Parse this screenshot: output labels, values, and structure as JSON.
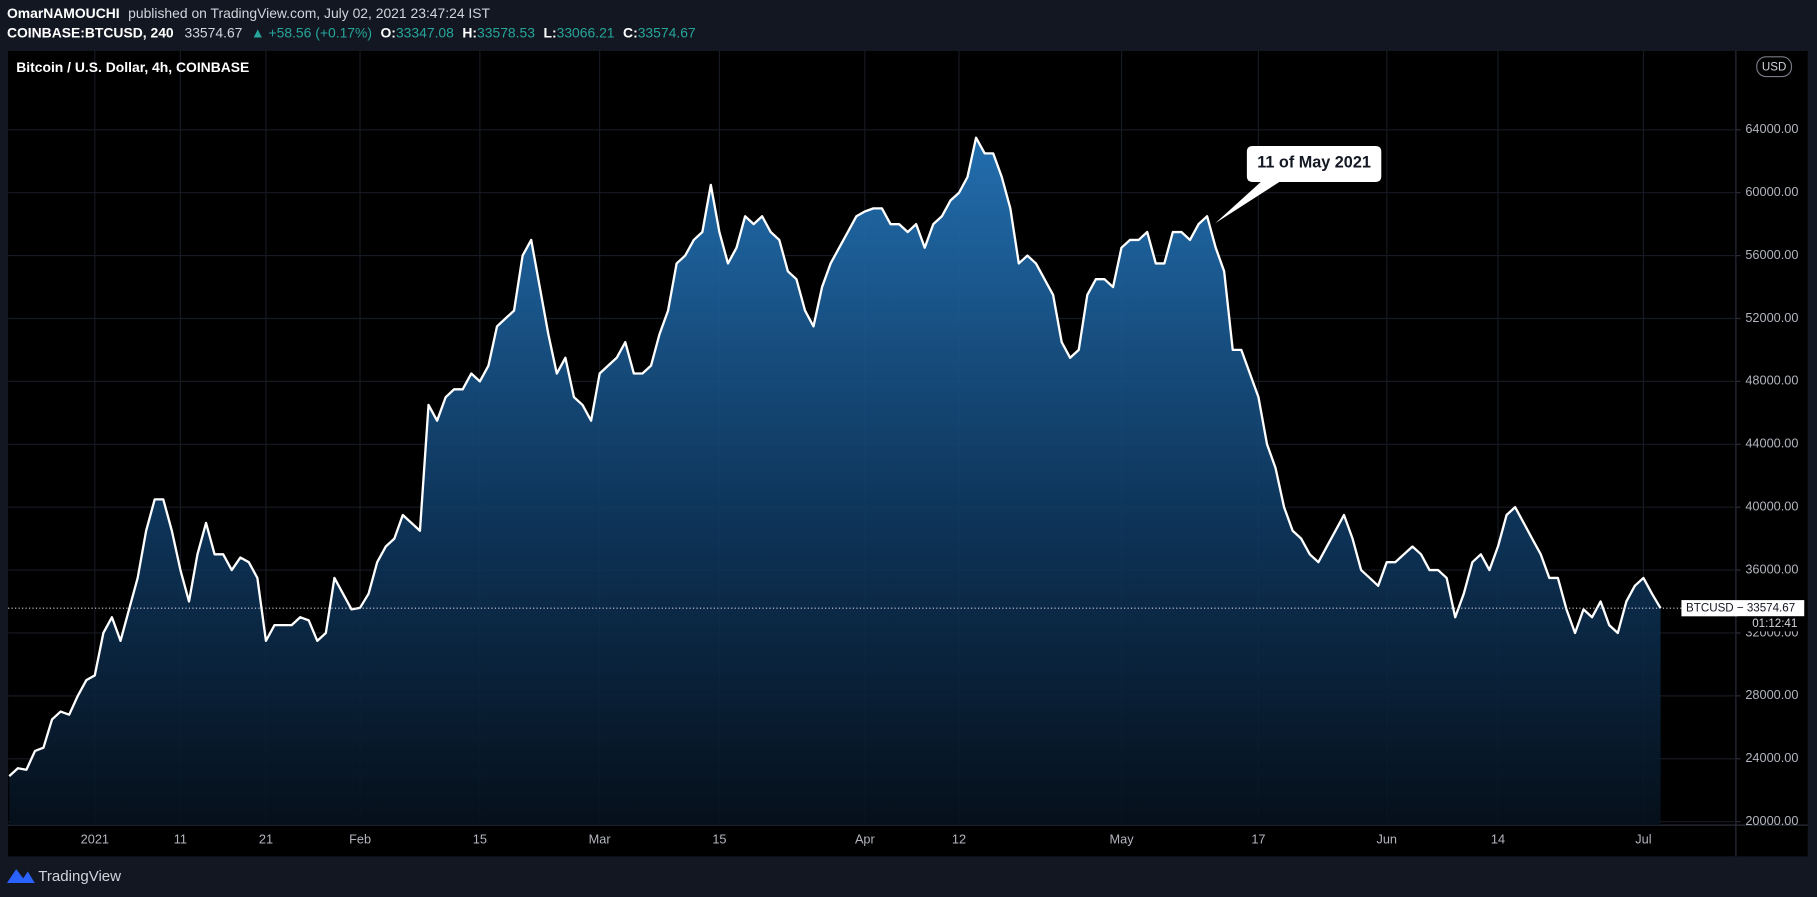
{
  "header": {
    "author": "OmarNAMOUCHI",
    "published": "published on TradingView.com, July 02, 2021 23:47:24 IST",
    "symbol": "COINBASE:BTCUSD, 240",
    "last": "33574.67",
    "change": "▲ +58.56 (+0.17%)",
    "open_label": "O:",
    "open": "33347.08",
    "high_label": "H:",
    "high": "33578.53",
    "low_label": "L:",
    "low": "33066.21",
    "close_label": "C:",
    "close": "33574.67"
  },
  "footer": {
    "brand": "TradingView"
  },
  "chart_data": {
    "type": "area",
    "title": "Bitcoin / U.S. Dollar, 4h, COINBASE",
    "currency": "USD",
    "annotation": "11 of May 2021",
    "price_label": "BTCUSD − 33574.67",
    "countdown": "01:12:41",
    "color": "#ffffff",
    "grid": true,
    "categories": [
      null,
      null,
      null,
      null,
      null,
      null,
      null,
      null,
      null,
      null,
      "2021",
      null,
      null,
      null,
      null,
      null,
      null,
      null,
      null,
      null,
      "11",
      null,
      null,
      null,
      null,
      null,
      null,
      null,
      null,
      null,
      "21",
      null,
      null,
      null,
      null,
      null,
      null,
      null,
      null,
      null,
      null,
      "Feb",
      null,
      null,
      null,
      null,
      null,
      null,
      null,
      null,
      null,
      null,
      null,
      null,
      null,
      "15",
      null,
      null,
      null,
      null,
      null,
      null,
      null,
      null,
      null,
      null,
      null,
      null,
      null,
      "Mar",
      null,
      null,
      null,
      null,
      null,
      null,
      null,
      null,
      null,
      null,
      null,
      null,
      null,
      "15",
      null,
      null,
      null,
      null,
      null,
      null,
      null,
      null,
      null,
      null,
      null,
      null,
      null,
      null,
      null,
      null,
      "Apr",
      null,
      null,
      null,
      null,
      null,
      null,
      null,
      null,
      null,
      null,
      "12",
      null,
      null,
      null,
      null,
      null,
      null,
      null,
      null,
      null,
      null,
      null,
      null,
      null,
      null,
      null,
      null,
      null,
      null,
      "May",
      null,
      null,
      null,
      null,
      null,
      null,
      null,
      null,
      null,
      null,
      null,
      null,
      null,
      null,
      null,
      "17",
      null,
      null,
      null,
      null,
      null,
      null,
      null,
      null,
      null,
      null,
      null,
      null,
      null,
      null,
      "Jun",
      null,
      null,
      null,
      null,
      null,
      null,
      null,
      null,
      null,
      null,
      null,
      null,
      "14",
      null,
      null,
      null,
      null,
      null,
      null,
      null,
      null,
      null,
      null,
      null,
      null,
      null,
      null,
      null,
      null,
      "Jul",
      null,
      null
    ],
    "values": [
      22900,
      23400,
      23300,
      24500,
      24700,
      26500,
      27000,
      26800,
      28000,
      29000,
      29300,
      32000,
      33000,
      31500,
      33500,
      35500,
      38500,
      40500,
      40500,
      38500,
      36000,
      34000,
      37000,
      39000,
      37000,
      37000,
      36000,
      36800,
      36500,
      35500,
      31500,
      32500,
      32500,
      32500,
      33000,
      32800,
      31500,
      32000,
      35500,
      34500,
      33500,
      33600,
      34500,
      36500,
      37500,
      38000,
      39500,
      39000,
      38500,
      46500,
      45500,
      47000,
      47500,
      47500,
      48500,
      48000,
      49000,
      51500,
      52000,
      52500,
      56000,
      57000,
      54000,
      51000,
      48500,
      49500,
      47000,
      46500,
      45500,
      48500,
      49000,
      49500,
      50500,
      48500,
      48500,
      49000,
      51000,
      52500,
      55500,
      56000,
      57000,
      57500,
      60500,
      57500,
      55500,
      56500,
      58500,
      58000,
      58500,
      57500,
      57000,
      55000,
      54500,
      52500,
      51500,
      54000,
      55500,
      56500,
      57500,
      58500,
      58800,
      59000,
      59000,
      58000,
      58000,
      57500,
      58000,
      56500,
      58000,
      58500,
      59500,
      60000,
      61000,
      63500,
      62500,
      62500,
      61000,
      59000,
      55500,
      56000,
      55500,
      54500,
      53500,
      50500,
      49500,
      50000,
      53500,
      54500,
      54500,
      54000,
      56500,
      57000,
      57000,
      57500,
      55500,
      55500,
      57500,
      57500,
      57000,
      58000,
      58500,
      56500,
      55000,
      50000,
      50000,
      48500,
      47000,
      44000,
      42500,
      40000,
      38500,
      38000,
      37000,
      36500,
      37500,
      38500,
      39500,
      38000,
      36000,
      35500,
      35000,
      36500,
      36500,
      37000,
      37500,
      37000,
      36000,
      36000,
      35500,
      33000,
      34500,
      36500,
      37000,
      36000,
      37500,
      39500,
      40000,
      39000,
      38000,
      37000,
      35500,
      35500,
      33500,
      32000,
      33500,
      33000,
      34000,
      32500,
      32000,
      34000,
      35000,
      35500,
      34500,
      33574.67
    ],
    "ylim": [
      19780,
      69010
    ],
    "yticks": [
      {
        "value": 20000,
        "label": "20000.00"
      },
      {
        "value": 24000,
        "label": "24000.00"
      },
      {
        "value": 28000,
        "label": "28000.00"
      },
      {
        "value": 32000,
        "label": "32000.00"
      },
      {
        "value": 36000,
        "label": "36000.00"
      },
      {
        "value": 40000,
        "label": "40000.00"
      },
      {
        "value": 44000,
        "label": "44000.00"
      },
      {
        "value": 48000,
        "label": "48000.00"
      },
      {
        "value": 52000,
        "label": "52000.00"
      },
      {
        "value": 56000,
        "label": "56000.00"
      },
      {
        "value": 60000,
        "label": "60000.00"
      },
      {
        "value": 64000,
        "label": "64000.00"
      }
    ],
    "annotation_index": 140
  }
}
